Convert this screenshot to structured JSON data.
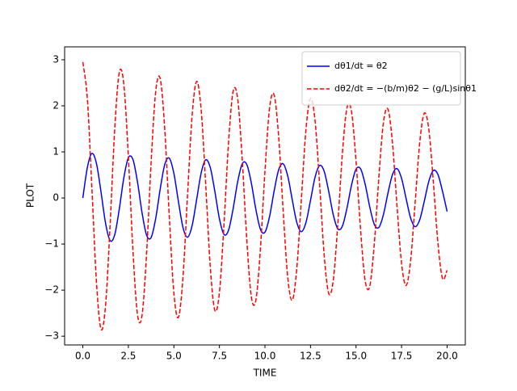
{
  "chart_data": {
    "type": "line",
    "x_label": "TIME",
    "y_label": "PLOT",
    "x": [
      0,
      0.25,
      0.5,
      0.75,
      1,
      1.25,
      1.5,
      1.75,
      2,
      2.25,
      2.5,
      2.75,
      3,
      3.25,
      3.5,
      3.75,
      4,
      4.25,
      4.5,
      4.75,
      5,
      5.25,
      5.5,
      5.75,
      6,
      6.25,
      6.5,
      6.75,
      7,
      7.25,
      7.5,
      7.75,
      8,
      8.25,
      8.5,
      8.75,
      9,
      9.25,
      9.5,
      9.75,
      10,
      10.25,
      10.5,
      10.75,
      11,
      11.25,
      11.5,
      11.75,
      12,
      12.25,
      12.5,
      12.75,
      13,
      13.25,
      13.5,
      13.75,
      14,
      14.25,
      14.5,
      14.75,
      15,
      15.25,
      15.5,
      15.75,
      16,
      16.25,
      16.5,
      16.75,
      17,
      17.25,
      17.5,
      17.75,
      18,
      18.25,
      18.5,
      18.75,
      19,
      19.25,
      19.5,
      19.75,
      20
    ],
    "series": [
      {
        "name": "dθ1/dt = θ2",
        "color": "#0000ff",
        "dash": "solid",
        "values": [
          0,
          0.665,
          0.966,
          0.745,
          0.125,
          -0.554,
          -0.927,
          -0.798,
          -0.243,
          0.436,
          0.872,
          0.836,
          0.35,
          -0.318,
          -0.806,
          -0.857,
          -0.446,
          0.198,
          0.73,
          0.862,
          0.531,
          -0.081,
          -0.643,
          -0.852,
          -0.601,
          -0.031,
          0.549,
          0.828,
          0.658,
          0.138,
          -0.452,
          -0.79,
          -0.701,
          -0.237,
          0.348,
          0.74,
          0.73,
          0.328,
          -0.246,
          -0.679,
          -0.743,
          -0.407,
          0.143,
          0.609,
          0.743,
          0.477,
          -0.042,
          -0.533,
          -0.731,
          -0.534,
          -0.053,
          0.45,
          0.705,
          0.579,
          0.144,
          -0.364,
          -0.67,
          -0.611,
          -0.227,
          0.275,
          0.623,
          0.633,
          0.303,
          -0.187,
          -0.569,
          -0.641,
          -0.368,
          0.098,
          0.506,
          0.637,
          0.425,
          -0.013,
          -0.439,
          -0.623,
          -0.471,
          -0.068,
          0.366,
          0.598,
          0.507,
          0.143,
          -0.293
        ]
      },
      {
        "name": "dθ2/dt = −(b/m)θ2 − (g/L)sinθ1",
        "color": "#ff0000",
        "dash": "dashed",
        "values": [
          2.95,
          2.14,
          0.19,
          -1.84,
          -2.85,
          -2.32,
          -0.56,
          1.49,
          2.72,
          2.47,
          0.89,
          -1.13,
          -2.53,
          -2.55,
          -1.21,
          0.78,
          2.31,
          2.59,
          1.48,
          -0.42,
          -2.07,
          -2.59,
          -1.71,
          0.07,
          1.79,
          2.53,
          1.9,
          0.26,
          -1.51,
          -2.44,
          -2.05,
          -0.57,
          1.2,
          2.31,
          2.16,
          0.85,
          -0.89,
          -2.14,
          -2.22,
          -1.11,
          0.58,
          1.94,
          2.24,
          1.34,
          -0.28,
          -1.72,
          -2.22,
          -1.52,
          -0.02,
          1.48,
          2.16,
          1.68,
          0.3,
          -1.23,
          -2.07,
          -1.79,
          -0.56,
          0.96,
          1.95,
          1.88,
          0.8,
          -0.69,
          -1.79,
          -1.92,
          -1.01,
          0.43,
          1.62,
          1.93,
          1.2,
          -0.17,
          -1.42,
          -1.9,
          -1.35,
          -0.08,
          1.21,
          1.84,
          1.48,
          0.32,
          -0.99,
          -1.75,
          -1.57
        ]
      }
    ],
    "xlim": [
      -1,
      21
    ],
    "ylim": [
      -3.19,
      3.28
    ],
    "xticks": [
      {
        "value": 0,
        "label": "0.0"
      },
      {
        "value": 2.5,
        "label": "2.5"
      },
      {
        "value": 5,
        "label": "5.0"
      },
      {
        "value": 7.5,
        "label": "7.5"
      },
      {
        "value": 10,
        "label": "10.0"
      },
      {
        "value": 12.5,
        "label": "12.5"
      },
      {
        "value": 15,
        "label": "15.0"
      },
      {
        "value": 17.5,
        "label": "17.5"
      },
      {
        "value": 20,
        "label": "20.0"
      }
    ],
    "yticks": [
      {
        "value": -3,
        "label": "−3"
      },
      {
        "value": -2,
        "label": "−2"
      },
      {
        "value": -1,
        "label": "−1"
      },
      0,
      1,
      2,
      3
    ],
    "grid": false,
    "legend": "upper right"
  }
}
